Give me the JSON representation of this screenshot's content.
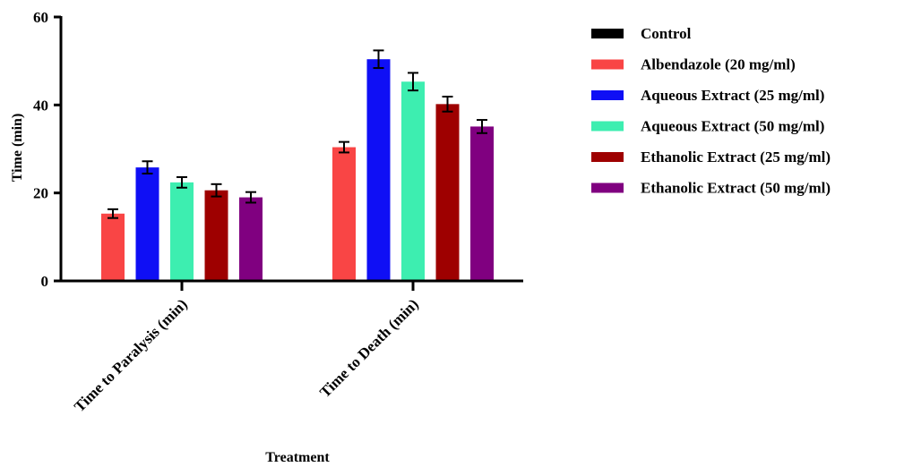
{
  "chart_data": {
    "type": "bar",
    "title": "",
    "xlabel": "Treatment",
    "ylabel": "Time (min)",
    "ylim": [
      0,
      60
    ],
    "yticks": [
      0,
      20,
      40,
      60
    ],
    "categories": [
      "Time to Paralysis (min)",
      "Time to Death (min)"
    ],
    "legend_position": "right",
    "error_bars": true,
    "series": [
      {
        "name": "Control",
        "color": "#000000",
        "values": [
          0,
          0
        ],
        "errors": [
          0,
          0
        ]
      },
      {
        "name": "Albendazole (20 mg/ml)",
        "color": "#f94545",
        "values": [
          15.3,
          30.4
        ],
        "errors": [
          1.0,
          1.2
        ]
      },
      {
        "name": "Aqueous Extract (25 mg/ml)",
        "color": "#0f0ff5",
        "values": [
          25.8,
          50.4
        ],
        "errors": [
          1.4,
          2.0
        ]
      },
      {
        "name": "Aqueous Extract (50 mg/ml)",
        "color": "#3deeb0",
        "values": [
          22.4,
          45.3
        ],
        "errors": [
          1.2,
          2.0
        ]
      },
      {
        "name": "Ethanolic Extract (25 mg/ml)",
        "color": "#9e0000",
        "values": [
          20.6,
          40.2
        ],
        "errors": [
          1.4,
          1.7
        ]
      },
      {
        "name": "Ethanolic Extract (50 mg/ml)",
        "color": "#800080",
        "values": [
          19.0,
          35.1
        ],
        "errors": [
          1.2,
          1.5
        ]
      }
    ]
  }
}
